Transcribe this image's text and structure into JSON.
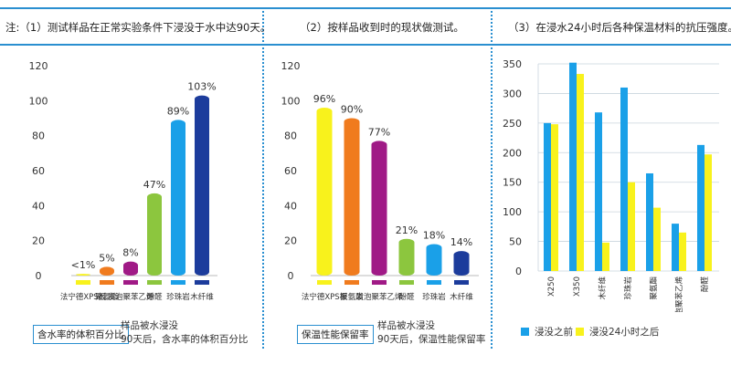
{
  "headers": {
    "h1": "注:（1）测试样品在正常实验条件下浸没于水中达90天。",
    "h2": "（2）按样品收到时的现状做测试。",
    "h3": "（3）在浸水24小时后各种保温材料的抗压强度。"
  },
  "footnotes": {
    "p1_box": "含水率的体积百分比",
    "p1_line1": "样品被水浸没",
    "p1_line2": "90天后，含水率的体积百分比",
    "p2_box": "保温性能保留率",
    "p2_line1": "样品被水浸没",
    "p2_line2": "90天后，保温性能保留率"
  },
  "colors": {
    "rule": "#2a8fd0",
    "blue_light": "#1aa0e8",
    "yellow": "#f8f21c"
  },
  "chart_data": [
    {
      "type": "bar",
      "categories": [
        "法宁德XPS板",
        "聚氨酯",
        "发泡聚苯乙烯",
        "酚醛",
        "珍珠岩",
        "木纤维"
      ],
      "values": [
        1,
        5,
        8,
        47,
        89,
        103
      ],
      "data_labels": [
        "<1%",
        "5%",
        "8%",
        "47%",
        "89%",
        "103%"
      ],
      "colors": [
        "#f8f21c",
        "#f07b1e",
        "#a01a86",
        "#8cc63e",
        "#1aa0e8",
        "#1c3c9c"
      ],
      "ylim": [
        0,
        120
      ],
      "yticks": [
        0,
        20,
        40,
        60,
        80,
        100,
        120
      ],
      "grid": false
    },
    {
      "type": "bar",
      "categories": [
        "法宁德XPS板",
        "聚氨酯",
        "发泡聚苯乙烯",
        "酚醛",
        "珍珠岩",
        "木纤维"
      ],
      "values": [
        96,
        90,
        77,
        21,
        18,
        14
      ],
      "data_labels": [
        "96%",
        "90%",
        "77%",
        "21%",
        "18%",
        "14%"
      ],
      "colors": [
        "#f8f21c",
        "#f07b1e",
        "#a01a86",
        "#8cc63e",
        "#1aa0e8",
        "#1c3c9c"
      ],
      "ylim": [
        0,
        120
      ],
      "yticks": [
        0,
        20,
        40,
        60,
        80,
        100,
        120
      ],
      "grid": false
    },
    {
      "type": "bar",
      "categories": [
        "X250",
        "X350",
        "木纤维",
        "珍珠岩",
        "聚氨酯",
        "发泡聚苯乙烯",
        "酚醛"
      ],
      "series": [
        {
          "name": "浸没之前",
          "values": [
            250,
            352,
            268,
            310,
            165,
            80,
            213
          ],
          "color": "#1aa0e8"
        },
        {
          "name": "浸没24小时之后",
          "values": [
            248,
            333,
            48,
            150,
            107,
            65,
            197
          ],
          "color": "#f8f21c"
        }
      ],
      "ylim": [
        0,
        350
      ],
      "yticks": [
        0,
        50,
        100,
        150,
        200,
        250,
        300,
        350
      ],
      "grid": true,
      "legend_position": "bottom"
    }
  ]
}
